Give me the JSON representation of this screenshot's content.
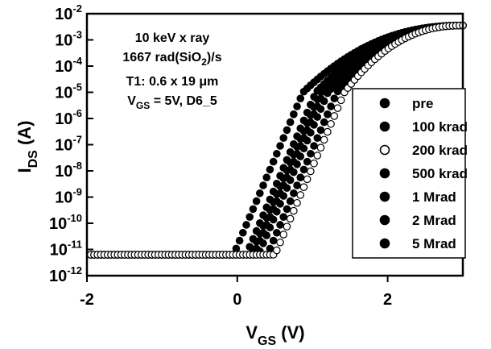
{
  "chart_data": {
    "type": "scatter",
    "title": "",
    "xlabel": {
      "main": "V",
      "sub": "GS",
      "tail": " (V)"
    },
    "ylabel": {
      "main": "I",
      "sub": "DS",
      "tail": " (A)"
    },
    "xlim": [
      -2,
      3
    ],
    "ylim_log10": [
      -12,
      -2
    ],
    "y_scale": "log",
    "x_ticks": [
      -2,
      0,
      2
    ],
    "x_tick_labels": [
      "-2",
      "0",
      "2"
    ],
    "y_ticks": [
      -12,
      -11,
      -10,
      -9,
      -8,
      -7,
      -6,
      -5,
      -4,
      -3,
      -2
    ],
    "y_tick_labels": [
      {
        "base": "10",
        "exp": "-12"
      },
      {
        "base": "10",
        "exp": "-11"
      },
      {
        "base": "10",
        "exp": "-10"
      },
      {
        "base": "10",
        "exp": "-9"
      },
      {
        "base": "10",
        "exp": "-8"
      },
      {
        "base": "10",
        "exp": "-7"
      },
      {
        "base": "10",
        "exp": "-6"
      },
      {
        "base": "10",
        "exp": "-5"
      },
      {
        "base": "10",
        "exp": "-4"
      },
      {
        "base": "10",
        "exp": "-3"
      },
      {
        "base": "10",
        "exp": "-2"
      }
    ],
    "annotations": [
      [
        {
          "t": "10 keV x ray"
        }
      ],
      [
        {
          "t": "1667 rad(SiO"
        },
        {
          "t": "2",
          "sub": true
        },
        {
          "t": ")/s"
        }
      ],
      [
        {
          "t": "T1: 0.6 x 19 μm"
        }
      ],
      [
        {
          "t": "V"
        },
        {
          "t": "GS",
          "sub": true
        },
        {
          "t": " = 5V, D6_5"
        }
      ]
    ],
    "legend_position": "right",
    "grid": false,
    "series": [
      {
        "name": "pre",
        "marker": "filled",
        "vth": -0.05
      },
      {
        "name": "100 krad",
        "marker": "filled",
        "vth": 0.18
      },
      {
        "name": "200 krad",
        "marker": "open",
        "vth": 0.5
      },
      {
        "name": "500 krad",
        "marker": "filled",
        "vth": 0.4
      },
      {
        "name": "1 Mrad",
        "marker": "filled",
        "vth": 0.28
      },
      {
        "name": "2 Mrad",
        "marker": "filled",
        "vth": 0.22
      },
      {
        "name": "5 Mrad",
        "marker": "filled",
        "vth": 0.12
      }
    ],
    "series_model": {
      "leakage_log10": -11.2,
      "subthreshold_slope_dec_per_V": 6.7,
      "on_log10_at_vth": -5.0,
      "max_log10_at_3V": -2.45
    }
  }
}
